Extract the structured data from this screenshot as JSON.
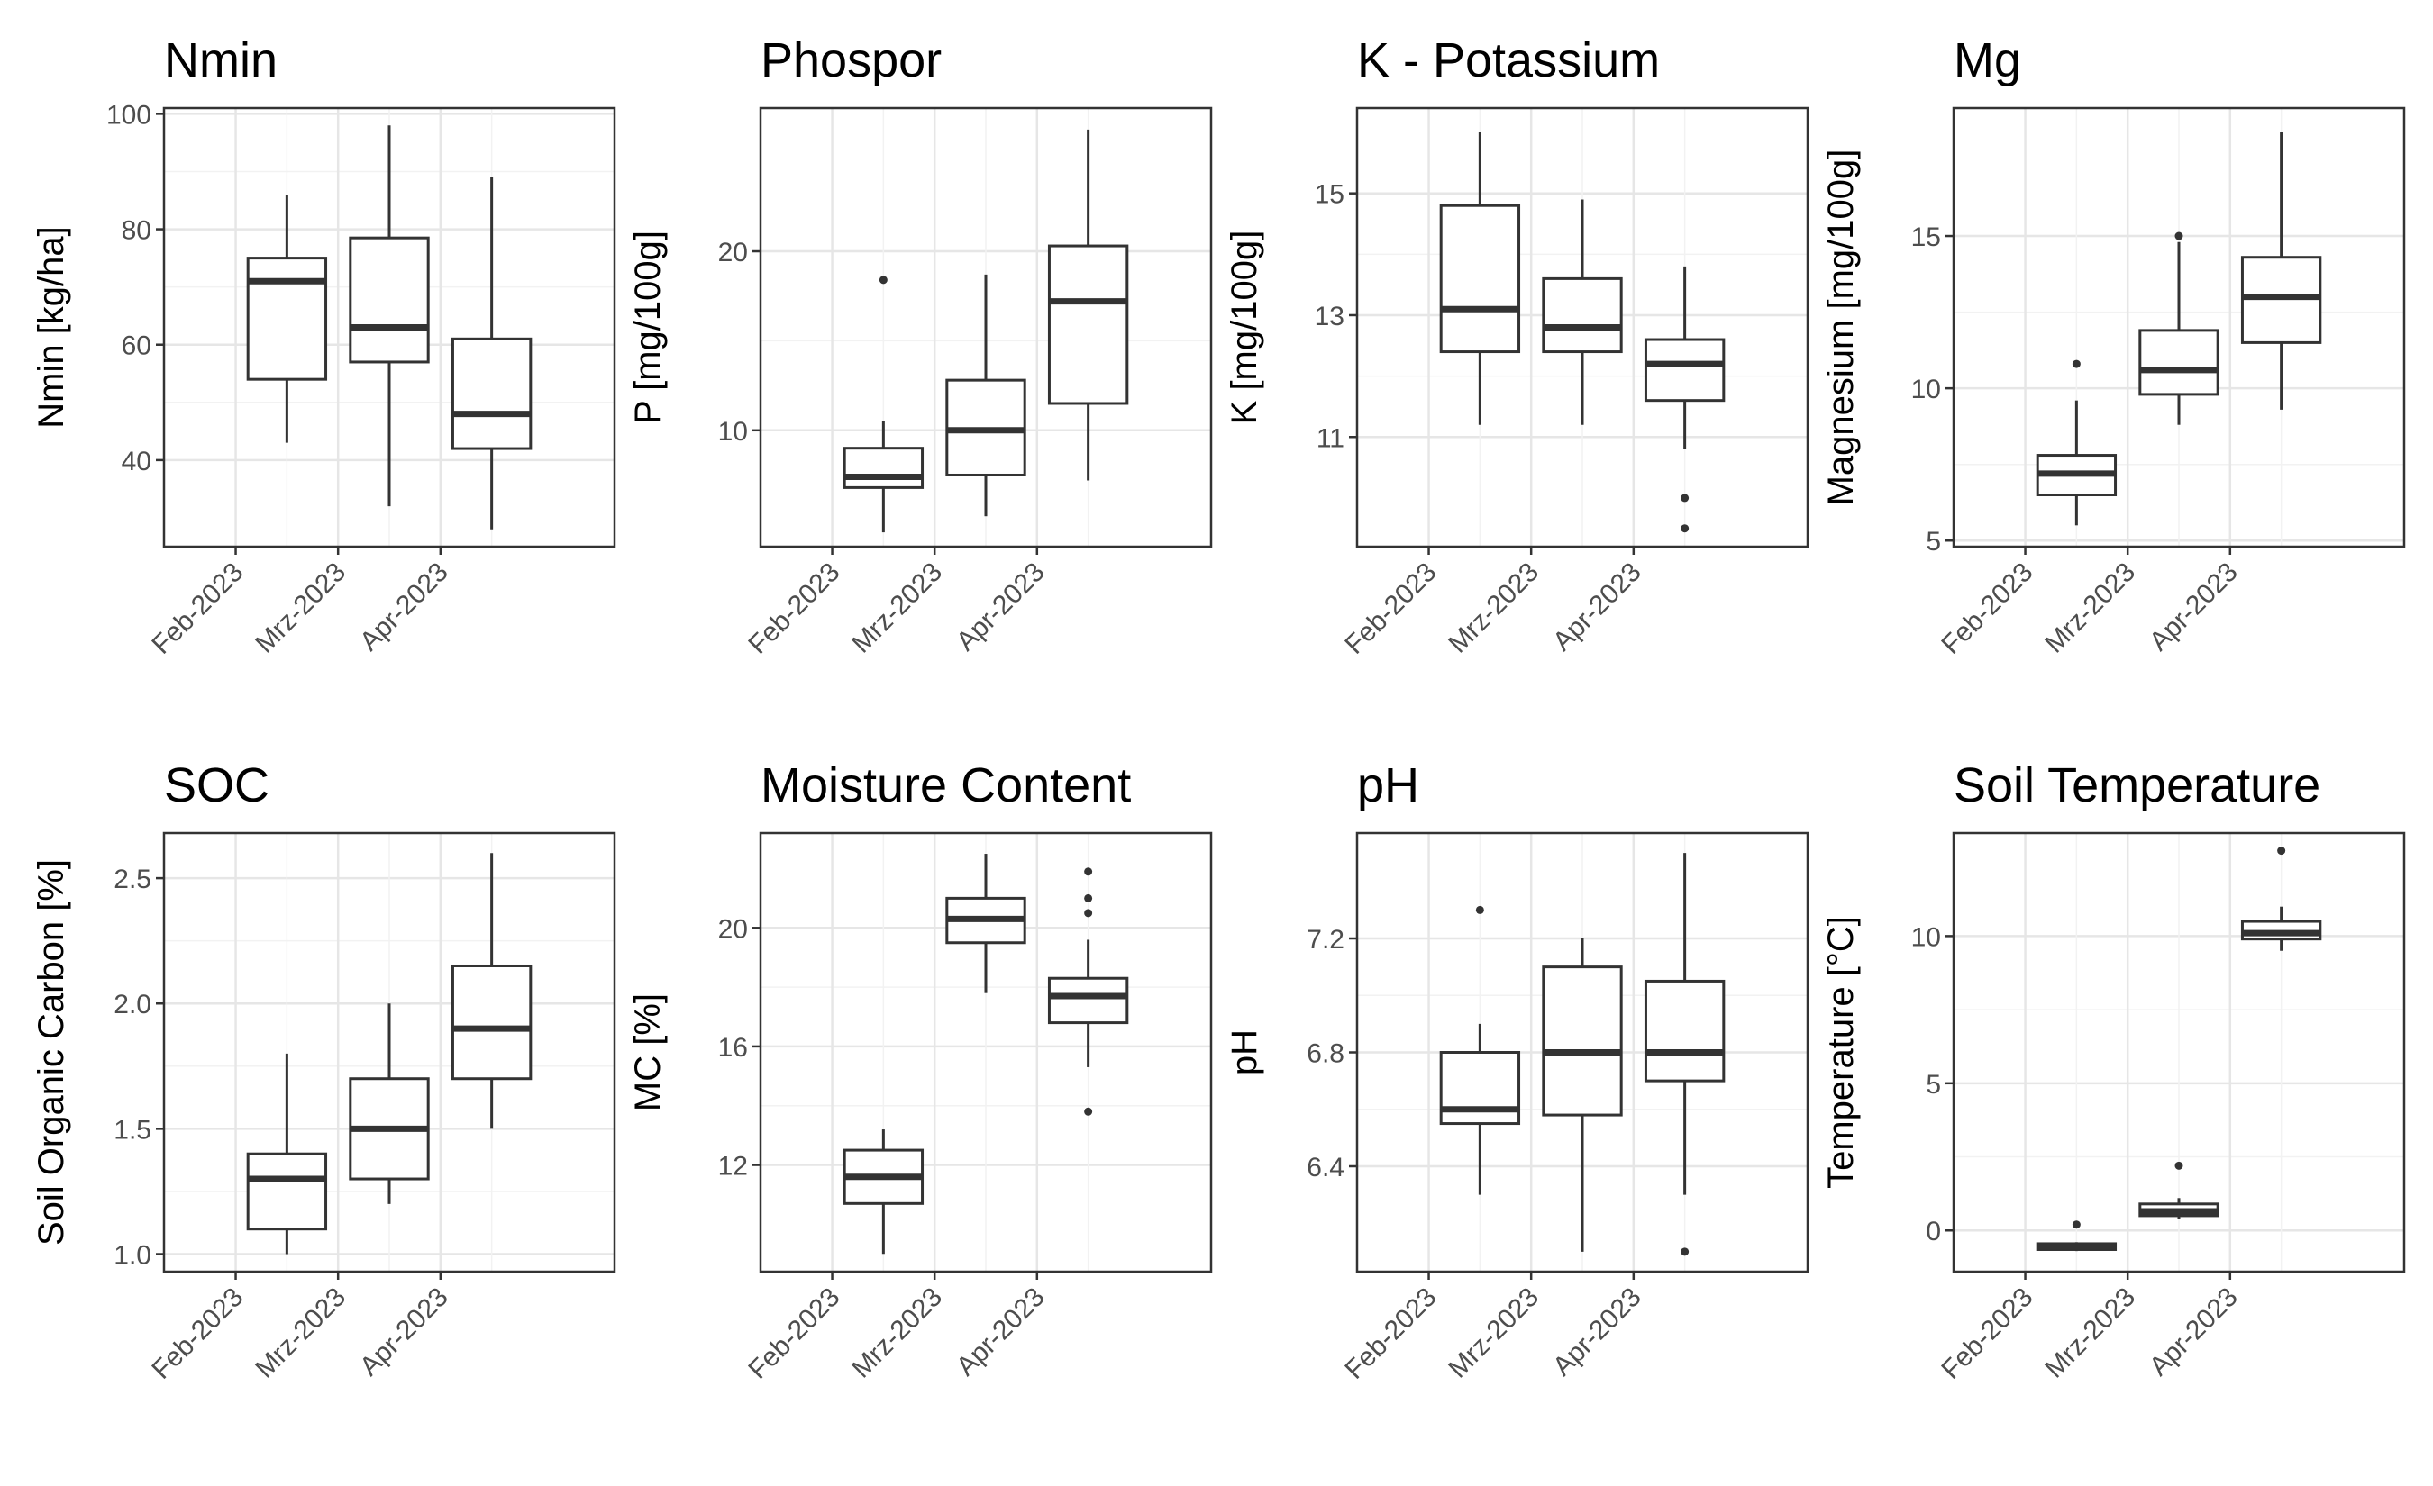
{
  "chart_data": [
    {
      "type": "boxplot",
      "title": "Nmin",
      "ylabel": "Nmin [kg/ha]",
      "categories": [
        "Feb-2023",
        "Mrz-2023",
        "Apr-2023"
      ],
      "ylim": [
        25,
        101
      ],
      "yticks": [
        40,
        60,
        80,
        100
      ],
      "grid": true,
      "boxes": [
        {
          "category": "Feb-2023",
          "min": 43,
          "q1": 54,
          "median": 71,
          "q3": 75,
          "max": 86,
          "outliers": []
        },
        {
          "category": "Mrz-2023",
          "min": 32,
          "q1": 57,
          "median": 63,
          "q3": 78.5,
          "max": 98,
          "outliers": []
        },
        {
          "category": "Apr-2023",
          "min": 28,
          "q1": 42,
          "median": 48,
          "q3": 61,
          "max": 89,
          "outliers": []
        }
      ]
    },
    {
      "type": "boxplot",
      "title": "Phospor",
      "ylabel": "P [mg/100g]",
      "categories": [
        "Feb-2023",
        "Mrz-2023",
        "Apr-2023"
      ],
      "ylim": [
        3.5,
        28
      ],
      "yticks": [
        10,
        20
      ],
      "grid": true,
      "boxes": [
        {
          "category": "Feb-2023",
          "min": 4.3,
          "q1": 6.8,
          "median": 7.4,
          "q3": 9.0,
          "max": 10.5,
          "outliers": [
            18.4
          ]
        },
        {
          "category": "Mrz-2023",
          "min": 5.2,
          "q1": 7.5,
          "median": 10.0,
          "q3": 12.8,
          "max": 18.7,
          "outliers": []
        },
        {
          "category": "Apr-2023",
          "min": 7.2,
          "q1": 11.5,
          "median": 17.2,
          "q3": 20.3,
          "max": 26.8,
          "outliers": []
        }
      ]
    },
    {
      "type": "boxplot",
      "title": "K - Potassium",
      "ylabel": "K [mg/100g]",
      "categories": [
        "Feb-2023",
        "Mrz-2023",
        "Apr-2023"
      ],
      "ylim": [
        9.2,
        16.4
      ],
      "yticks": [
        11,
        13,
        15
      ],
      "grid": true,
      "boxes": [
        {
          "category": "Feb-2023",
          "min": 11.2,
          "q1": 12.4,
          "median": 13.1,
          "q3": 14.8,
          "max": 16.0,
          "outliers": []
        },
        {
          "category": "Mrz-2023",
          "min": 11.2,
          "q1": 12.4,
          "median": 12.8,
          "q3": 13.6,
          "max": 14.9,
          "outliers": []
        },
        {
          "category": "Apr-2023",
          "min": 10.8,
          "q1": 11.6,
          "median": 12.2,
          "q3": 12.6,
          "max": 13.8,
          "outliers": [
            10.0,
            9.5
          ]
        }
      ]
    },
    {
      "type": "boxplot",
      "title": "Mg",
      "ylabel": "Magnesium [mg/100g]",
      "categories": [
        "Feb-2023",
        "Mrz-2023",
        "Apr-2023"
      ],
      "ylim": [
        4.8,
        19.2
      ],
      "yticks": [
        5,
        10,
        15
      ],
      "grid": true,
      "boxes": [
        {
          "category": "Feb-2023",
          "min": 5.5,
          "q1": 6.5,
          "median": 7.2,
          "q3": 7.8,
          "max": 9.6,
          "outliers": [
            10.8
          ]
        },
        {
          "category": "Mrz-2023",
          "min": 8.8,
          "q1": 9.8,
          "median": 10.6,
          "q3": 11.9,
          "max": 14.8,
          "outliers": [
            15.0
          ]
        },
        {
          "category": "Apr-2023",
          "min": 9.3,
          "q1": 11.5,
          "median": 13.0,
          "q3": 14.3,
          "max": 18.4,
          "outliers": []
        }
      ]
    },
    {
      "type": "boxplot",
      "title": "SOC",
      "ylabel": "Soil Organic Carbon [%]",
      "categories": [
        "Feb-2023",
        "Mrz-2023",
        "Apr-2023"
      ],
      "ylim": [
        0.93,
        2.68
      ],
      "yticks": [
        1.0,
        1.5,
        2.0,
        2.5
      ],
      "ytick_labels": [
        "1.0",
        "1.5",
        "2.0",
        "2.5"
      ],
      "grid": true,
      "boxes": [
        {
          "category": "Feb-2023",
          "min": 1.0,
          "q1": 1.1,
          "median": 1.3,
          "q3": 1.4,
          "max": 1.8,
          "outliers": []
        },
        {
          "category": "Mrz-2023",
          "min": 1.2,
          "q1": 1.3,
          "median": 1.5,
          "q3": 1.7,
          "max": 2.0,
          "outliers": []
        },
        {
          "category": "Apr-2023",
          "min": 1.5,
          "q1": 1.7,
          "median": 1.9,
          "q3": 2.15,
          "max": 2.6,
          "outliers": []
        }
      ]
    },
    {
      "type": "boxplot",
      "title": "Moisture Content",
      "ylabel": "MC [%]",
      "categories": [
        "Feb-2023",
        "Mrz-2023",
        "Apr-2023"
      ],
      "ylim": [
        8.4,
        23.2
      ],
      "yticks": [
        12,
        16,
        20
      ],
      "grid": true,
      "boxes": [
        {
          "category": "Feb-2023",
          "min": 9.0,
          "q1": 10.7,
          "median": 11.6,
          "q3": 12.5,
          "max": 13.2,
          "outliers": []
        },
        {
          "category": "Mrz-2023",
          "min": 17.8,
          "q1": 19.5,
          "median": 20.3,
          "q3": 21.0,
          "max": 22.5,
          "outliers": []
        },
        {
          "category": "Apr-2023",
          "min": 15.3,
          "q1": 16.8,
          "median": 17.7,
          "q3": 18.3,
          "max": 19.6,
          "outliers": [
            21.9,
            21.0,
            20.5,
            13.8
          ]
        }
      ]
    },
    {
      "type": "boxplot",
      "title": "pH",
      "ylabel": "pH",
      "categories": [
        "Feb-2023",
        "Mrz-2023",
        "Apr-2023"
      ],
      "ylim": [
        6.03,
        7.57
      ],
      "yticks": [
        6.4,
        6.8,
        7.2
      ],
      "grid": true,
      "boxes": [
        {
          "category": "Feb-2023",
          "min": 6.3,
          "q1": 6.55,
          "median": 6.6,
          "q3": 6.8,
          "max": 6.9,
          "outliers": [
            7.3
          ]
        },
        {
          "category": "Mrz-2023",
          "min": 6.1,
          "q1": 6.58,
          "median": 6.8,
          "q3": 7.1,
          "max": 7.2,
          "outliers": []
        },
        {
          "category": "Apr-2023",
          "min": 6.3,
          "q1": 6.7,
          "median": 6.8,
          "q3": 7.05,
          "max": 7.5,
          "outliers": [
            6.1
          ]
        }
      ]
    },
    {
      "type": "boxplot",
      "title": "Soil Temperature",
      "ylabel": "Temperature [°C]",
      "categories": [
        "Feb-2023",
        "Mrz-2023",
        "Apr-2023"
      ],
      "ylim": [
        -1.4,
        13.5
      ],
      "yticks": [
        0,
        5,
        10
      ],
      "grid": true,
      "boxes": [
        {
          "category": "Feb-2023",
          "min": -0.7,
          "q1": -0.65,
          "median": -0.55,
          "q3": -0.45,
          "max": -0.4,
          "outliers": [
            0.2
          ]
        },
        {
          "category": "Mrz-2023",
          "min": 0.4,
          "q1": 0.5,
          "median": 0.65,
          "q3": 0.9,
          "max": 1.1,
          "outliers": [
            2.2
          ]
        },
        {
          "category": "Apr-2023",
          "min": 9.5,
          "q1": 9.9,
          "median": 10.1,
          "q3": 10.5,
          "max": 11.0,
          "outliers": [
            12.9
          ]
        }
      ]
    }
  ]
}
